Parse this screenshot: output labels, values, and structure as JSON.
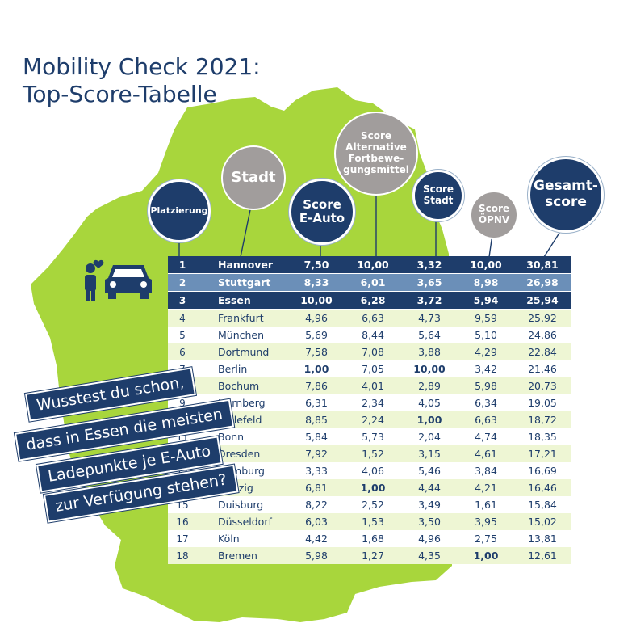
{
  "title_line1": "Mobility Check 2021:",
  "title_line2": "Top-Score-Tabelle",
  "headers": {
    "rank": "Platzierung",
    "city": "Stadt",
    "eauto": "Score\nE-Auto",
    "alt": "Score\nAlternative\nFortbewe-\ngungsmittel",
    "stadt": "Score\nStadt",
    "oepnv": "Score\nÖPNV",
    "total": "Gesamt-\nscore"
  },
  "callout": [
    "Wusstest du schon,",
    "dass in Essen die meisten",
    "Ladepunkte je E-Auto",
    "zur Verfügung stehen?"
  ],
  "colors": {
    "navy": "#1e3d6b",
    "mid_blue": "#6b8fb8",
    "map_green": "#a8d63c",
    "grey_bubble": "#a19d9c",
    "row_tint": "#eef6d4"
  },
  "icons": [
    "person-with-heart-icon",
    "car-icon"
  ],
  "chart_data": {
    "type": "table",
    "columns": [
      "Platzierung",
      "Stadt",
      "Score E-Auto",
      "Score Alternative Fortbewegungsmittel",
      "Score Stadt",
      "Score ÖPNV",
      "Gesamtscore"
    ],
    "rows": [
      {
        "rank": "1",
        "city": "Hannover",
        "eauto": "7,50",
        "alt": "10,00",
        "stadt": "3,32",
        "oepnv": "10,00",
        "total": "30,81"
      },
      {
        "rank": "2",
        "city": "Stuttgart",
        "eauto": "8,33",
        "alt": "6,01",
        "stadt": "3,65",
        "oepnv": "8,98",
        "total": "26,98"
      },
      {
        "rank": "3",
        "city": "Essen",
        "eauto": "10,00",
        "alt": "6,28",
        "stadt": "3,72",
        "oepnv": "5,94",
        "total": "25,94"
      },
      {
        "rank": "4",
        "city": "Frankfurt",
        "eauto": "4,96",
        "alt": "6,63",
        "stadt": "4,73",
        "oepnv": "9,59",
        "total": "25,92"
      },
      {
        "rank": "5",
        "city": "München",
        "eauto": "5,69",
        "alt": "8,44",
        "stadt": "5,64",
        "oepnv": "5,10",
        "total": "24,86"
      },
      {
        "rank": "6",
        "city": "Dortmund",
        "eauto": "7,58",
        "alt": "7,08",
        "stadt": "3,88",
        "oepnv": "4,29",
        "total": "22,84"
      },
      {
        "rank": "7",
        "city": "Berlin",
        "eauto": "1,00",
        "alt": "7,05",
        "stadt": "10,00",
        "oepnv": "3,42",
        "total": "21,46"
      },
      {
        "rank": "8",
        "city": "Bochum",
        "eauto": "7,86",
        "alt": "4,01",
        "stadt": "2,89",
        "oepnv": "5,98",
        "total": "20,73"
      },
      {
        "rank": "9",
        "city": "Nürnberg",
        "eauto": "6,31",
        "alt": "2,34",
        "stadt": "4,05",
        "oepnv": "6,34",
        "total": "19,05"
      },
      {
        "rank": "10",
        "city": "Bielefeld",
        "eauto": "8,85",
        "alt": "2,24",
        "stadt": "1,00",
        "oepnv": "6,63",
        "total": "18,72"
      },
      {
        "rank": "11",
        "city": "Bonn",
        "eauto": "5,84",
        "alt": "5,73",
        "stadt": "2,04",
        "oepnv": "4,74",
        "total": "18,35"
      },
      {
        "rank": "12",
        "city": "Dresden",
        "eauto": "7,92",
        "alt": "1,52",
        "stadt": "3,15",
        "oepnv": "4,61",
        "total": "17,21"
      },
      {
        "rank": "13",
        "city": "Hamburg",
        "eauto": "3,33",
        "alt": "4,06",
        "stadt": "5,46",
        "oepnv": "3,84",
        "total": "16,69"
      },
      {
        "rank": "14",
        "city": "Leipzig",
        "eauto": "6,81",
        "alt": "1,00",
        "stadt": "4,44",
        "oepnv": "4,21",
        "total": "16,46"
      },
      {
        "rank": "15",
        "city": "Duisburg",
        "eauto": "8,22",
        "alt": "2,52",
        "stadt": "3,49",
        "oepnv": "1,61",
        "total": "15,84"
      },
      {
        "rank": "16",
        "city": "Düsseldorf",
        "eauto": "6,03",
        "alt": "1,53",
        "stadt": "3,50",
        "oepnv": "3,95",
        "total": "15,02"
      },
      {
        "rank": "17",
        "city": "Köln",
        "eauto": "4,42",
        "alt": "1,68",
        "stadt": "4,96",
        "oepnv": "2,75",
        "total": "13,81"
      },
      {
        "rank": "18",
        "city": "Bremen",
        "eauto": "5,98",
        "alt": "1,27",
        "stadt": "4,35",
        "oepnv": "1,00",
        "total": "12,61"
      }
    ]
  }
}
